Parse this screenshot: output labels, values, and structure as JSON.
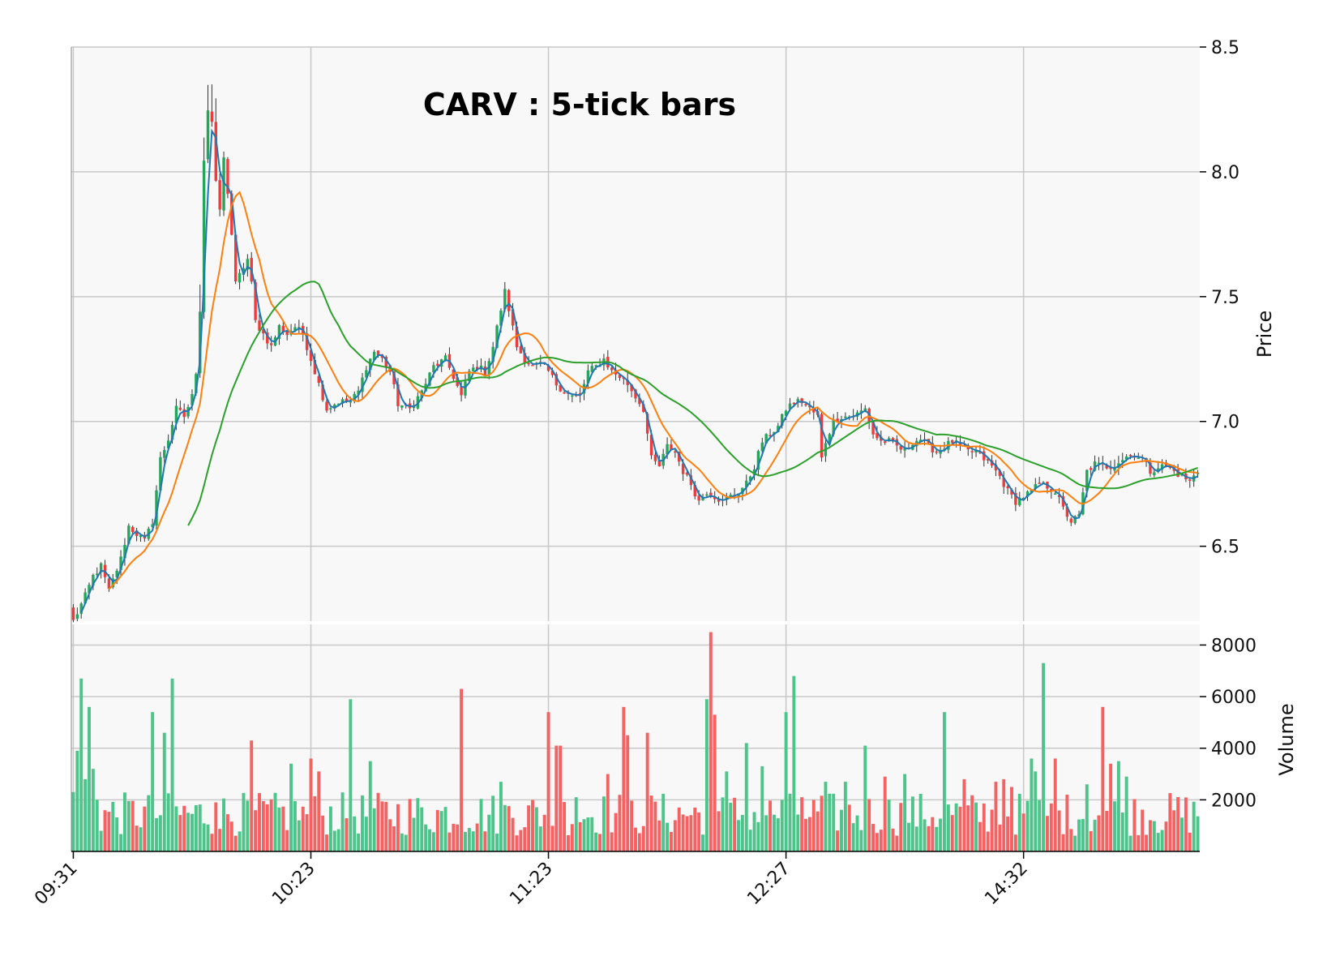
{
  "chart_data": {
    "type": "candlestick",
    "title": "CARV : 5-tick bars",
    "price_axis": {
      "label": "Price",
      "ylim": [
        6.2,
        8.5
      ],
      "ticks": [
        6.5,
        7.0,
        7.5,
        8.0,
        8.5
      ],
      "position": "right"
    },
    "volume_axis": {
      "label": "Volume",
      "ylim": [
        0,
        8800
      ],
      "ticks": [
        2000,
        4000,
        6000,
        8000
      ],
      "position": "right"
    },
    "x_ticks": [
      {
        "index": 0,
        "label": "09:31"
      },
      {
        "index": 60,
        "label": "10:23"
      },
      {
        "index": 120,
        "label": "11:23"
      },
      {
        "index": 180,
        "label": "12:27"
      },
      {
        "index": 240,
        "label": "14:32"
      }
    ],
    "bar_count": 285,
    "grid": true,
    "moving_averages": [
      {
        "period": 3,
        "color": "#1f77b4"
      },
      {
        "period": 10,
        "color": "#ff7f0e"
      },
      {
        "period": 30,
        "color": "#2ca02c"
      }
    ],
    "colors": {
      "up": "#26a65b",
      "down": "#ef3b3b",
      "up_volume": "#4cc48a",
      "down_volume": "#f56262",
      "panel_bg": "#f8f8f8",
      "grid": "#c8c8c8"
    },
    "close_anchors": [
      [
        0,
        6.2
      ],
      [
        3,
        6.3
      ],
      [
        5,
        6.38
      ],
      [
        7,
        6.42
      ],
      [
        9,
        6.32
      ],
      [
        12,
        6.45
      ],
      [
        14,
        6.58
      ],
      [
        16,
        6.55
      ],
      [
        18,
        6.52
      ],
      [
        20,
        6.6
      ],
      [
        22,
        6.85
      ],
      [
        24,
        6.93
      ],
      [
        26,
        7.05
      ],
      [
        28,
        7.02
      ],
      [
        30,
        7.1
      ],
      [
        31,
        7.2
      ],
      [
        32,
        7.45
      ],
      [
        33,
        8.05
      ],
      [
        34,
        8.25
      ],
      [
        35,
        8.2
      ],
      [
        36,
        7.95
      ],
      [
        37,
        7.85
      ],
      [
        38,
        8.05
      ],
      [
        39,
        7.92
      ],
      [
        40,
        7.75
      ],
      [
        41,
        7.55
      ],
      [
        43,
        7.62
      ],
      [
        44,
        7.65
      ],
      [
        45,
        7.55
      ],
      [
        46,
        7.4
      ],
      [
        48,
        7.35
      ],
      [
        50,
        7.3
      ],
      [
        52,
        7.38
      ],
      [
        54,
        7.35
      ],
      [
        56,
        7.38
      ],
      [
        58,
        7.35
      ],
      [
        60,
        7.25
      ],
      [
        62,
        7.15
      ],
      [
        64,
        7.05
      ],
      [
        67,
        7.08
      ],
      [
        70,
        7.08
      ],
      [
        72,
        7.12
      ],
      [
        74,
        7.22
      ],
      [
        76,
        7.28
      ],
      [
        78,
        7.25
      ],
      [
        80,
        7.2
      ],
      [
        82,
        7.07
      ],
      [
        85,
        7.05
      ],
      [
        88,
        7.12
      ],
      [
        91,
        7.22
      ],
      [
        94,
        7.25
      ],
      [
        96,
        7.18
      ],
      [
        98,
        7.1
      ],
      [
        100,
        7.2
      ],
      [
        102,
        7.22
      ],
      [
        104,
        7.2
      ],
      [
        106,
        7.3
      ],
      [
        108,
        7.45
      ],
      [
        109,
        7.52
      ],
      [
        110,
        7.45
      ],
      [
        112,
        7.3
      ],
      [
        114,
        7.25
      ],
      [
        116,
        7.22
      ],
      [
        118,
        7.23
      ],
      [
        120,
        7.2
      ],
      [
        122,
        7.15
      ],
      [
        124,
        7.12
      ],
      [
        126,
        7.1
      ],
      [
        128,
        7.1
      ],
      [
        130,
        7.2
      ],
      [
        132,
        7.22
      ],
      [
        134,
        7.25
      ],
      [
        136,
        7.2
      ],
      [
        138,
        7.18
      ],
      [
        140,
        7.15
      ],
      [
        142,
        7.1
      ],
      [
        144,
        7.05
      ],
      [
        146,
        6.85
      ],
      [
        148,
        6.82
      ],
      [
        150,
        6.9
      ],
      [
        152,
        6.88
      ],
      [
        154,
        6.8
      ],
      [
        156,
        6.75
      ],
      [
        158,
        6.68
      ],
      [
        160,
        6.72
      ],
      [
        162,
        6.7
      ],
      [
        164,
        6.68
      ],
      [
        166,
        6.7
      ],
      [
        168,
        6.72
      ],
      [
        170,
        6.75
      ],
      [
        172,
        6.82
      ],
      [
        174,
        6.92
      ],
      [
        176,
        6.95
      ],
      [
        178,
        6.98
      ],
      [
        180,
        7.05
      ],
      [
        182,
        7.08
      ],
      [
        184,
        7.08
      ],
      [
        186,
        7.05
      ],
      [
        188,
        7.02
      ],
      [
        189,
        6.85
      ],
      [
        190,
        6.92
      ],
      [
        192,
        7.0
      ],
      [
        194,
        7.02
      ],
      [
        196,
        7.02
      ],
      [
        198,
        7.03
      ],
      [
        200,
        7.05
      ],
      [
        202,
        6.95
      ],
      [
        204,
        6.92
      ],
      [
        206,
        6.92
      ],
      [
        208,
        6.9
      ],
      [
        210,
        6.88
      ],
      [
        212,
        6.92
      ],
      [
        214,
        6.93
      ],
      [
        216,
        6.9
      ],
      [
        218,
        6.88
      ],
      [
        220,
        6.9
      ],
      [
        222,
        6.92
      ],
      [
        224,
        6.9
      ],
      [
        226,
        6.88
      ],
      [
        228,
        6.88
      ],
      [
        230,
        6.85
      ],
      [
        232,
        6.82
      ],
      [
        234,
        6.78
      ],
      [
        236,
        6.72
      ],
      [
        238,
        6.68
      ],
      [
        240,
        6.7
      ],
      [
        242,
        6.72
      ],
      [
        244,
        6.75
      ],
      [
        246,
        6.74
      ],
      [
        248,
        6.72
      ],
      [
        250,
        6.65
      ],
      [
        252,
        6.6
      ],
      [
        254,
        6.62
      ],
      [
        256,
        6.8
      ],
      [
        258,
        6.83
      ],
      [
        260,
        6.82
      ],
      [
        262,
        6.82
      ],
      [
        264,
        6.84
      ],
      [
        266,
        6.86
      ],
      [
        268,
        6.87
      ],
      [
        270,
        6.85
      ],
      [
        272,
        6.8
      ],
      [
        274,
        6.82
      ],
      [
        276,
        6.82
      ],
      [
        278,
        6.8
      ],
      [
        280,
        6.78
      ],
      [
        282,
        6.76
      ],
      [
        284,
        6.8
      ]
    ],
    "volume_peaks": [
      [
        0,
        2300
      ],
      [
        1,
        3900
      ],
      [
        2,
        6700
      ],
      [
        3,
        2800
      ],
      [
        4,
        5600
      ],
      [
        5,
        3200
      ],
      [
        6,
        2000
      ],
      [
        20,
        5400
      ],
      [
        23,
        4600
      ],
      [
        25,
        6700
      ],
      [
        36,
        1900
      ],
      [
        45,
        4300
      ],
      [
        55,
        3400
      ],
      [
        60,
        3600
      ],
      [
        62,
        3100
      ],
      [
        70,
        5900
      ],
      [
        75,
        3500
      ],
      [
        98,
        6300
      ],
      [
        108,
        2700
      ],
      [
        120,
        5400
      ],
      [
        122,
        4100
      ],
      [
        123,
        4100
      ],
      [
        127,
        2100
      ],
      [
        135,
        3000
      ],
      [
        139,
        5600
      ],
      [
        140,
        4500
      ],
      [
        145,
        4600
      ],
      [
        160,
        5900
      ],
      [
        161,
        8500
      ],
      [
        162,
        5300
      ],
      [
        165,
        3100
      ],
      [
        170,
        4200
      ],
      [
        174,
        3300
      ],
      [
        180,
        5400
      ],
      [
        182,
        6800
      ],
      [
        184,
        2100
      ],
      [
        190,
        2700
      ],
      [
        195,
        2700
      ],
      [
        200,
        4100
      ],
      [
        205,
        2900
      ],
      [
        210,
        3000
      ],
      [
        220,
        5400
      ],
      [
        225,
        2800
      ],
      [
        233,
        2700
      ],
      [
        235,
        2800
      ],
      [
        237,
        2500
      ],
      [
        242,
        3600
      ],
      [
        243,
        3100
      ],
      [
        245,
        7300
      ],
      [
        248,
        3600
      ],
      [
        256,
        2600
      ],
      [
        260,
        5600
      ],
      [
        262,
        3400
      ],
      [
        264,
        3500
      ],
      [
        266,
        2900
      ]
    ]
  }
}
